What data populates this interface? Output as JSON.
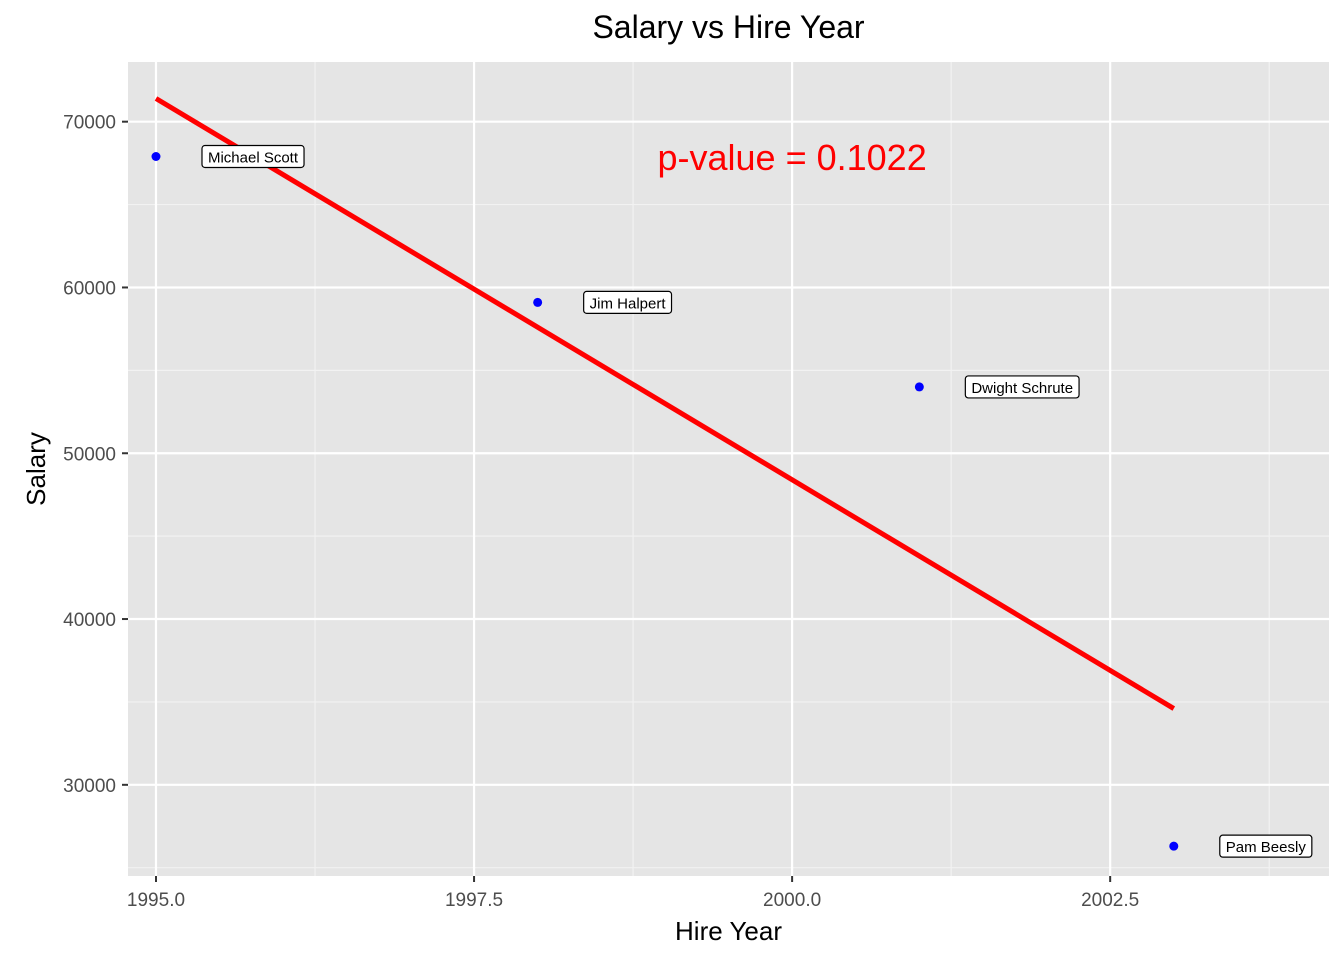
{
  "chart_data": {
    "type": "scatter",
    "title": "Salary vs Hire Year",
    "xlabel": "Hire Year",
    "ylabel": "Salary",
    "xlim": [
      1994.78,
      2004.22
    ],
    "ylim": [
      24500,
      73600
    ],
    "x_ticks": [
      1995.0,
      1997.5,
      2000.0,
      2002.5
    ],
    "x_tick_labels": [
      "1995.0",
      "1997.5",
      "2000.0",
      "2002.5"
    ],
    "y_ticks": [
      30000,
      40000,
      50000,
      60000,
      70000
    ],
    "y_tick_labels": [
      "30000",
      "40000",
      "50000",
      "60000",
      "70000"
    ],
    "grid": true,
    "point_color": "#0000ff",
    "line_color": "#ff0000",
    "panel_background": "#e5e5e5",
    "points": [
      {
        "x": 1995,
        "y": 67900,
        "label": "Michael Scott"
      },
      {
        "x": 1998,
        "y": 59100,
        "label": "Jim Halpert"
      },
      {
        "x": 2001,
        "y": 54000,
        "label": "Dwight Schrute"
      },
      {
        "x": 2003,
        "y": 26300,
        "label": "Pam Beesly"
      }
    ],
    "fit_line": {
      "x": [
        1995,
        2003
      ],
      "y": [
        71400,
        34600
      ]
    },
    "annotation": {
      "text": "p-value = 0.1022",
      "x": 2000.0,
      "y": 67800,
      "color": "#ff0000"
    }
  }
}
